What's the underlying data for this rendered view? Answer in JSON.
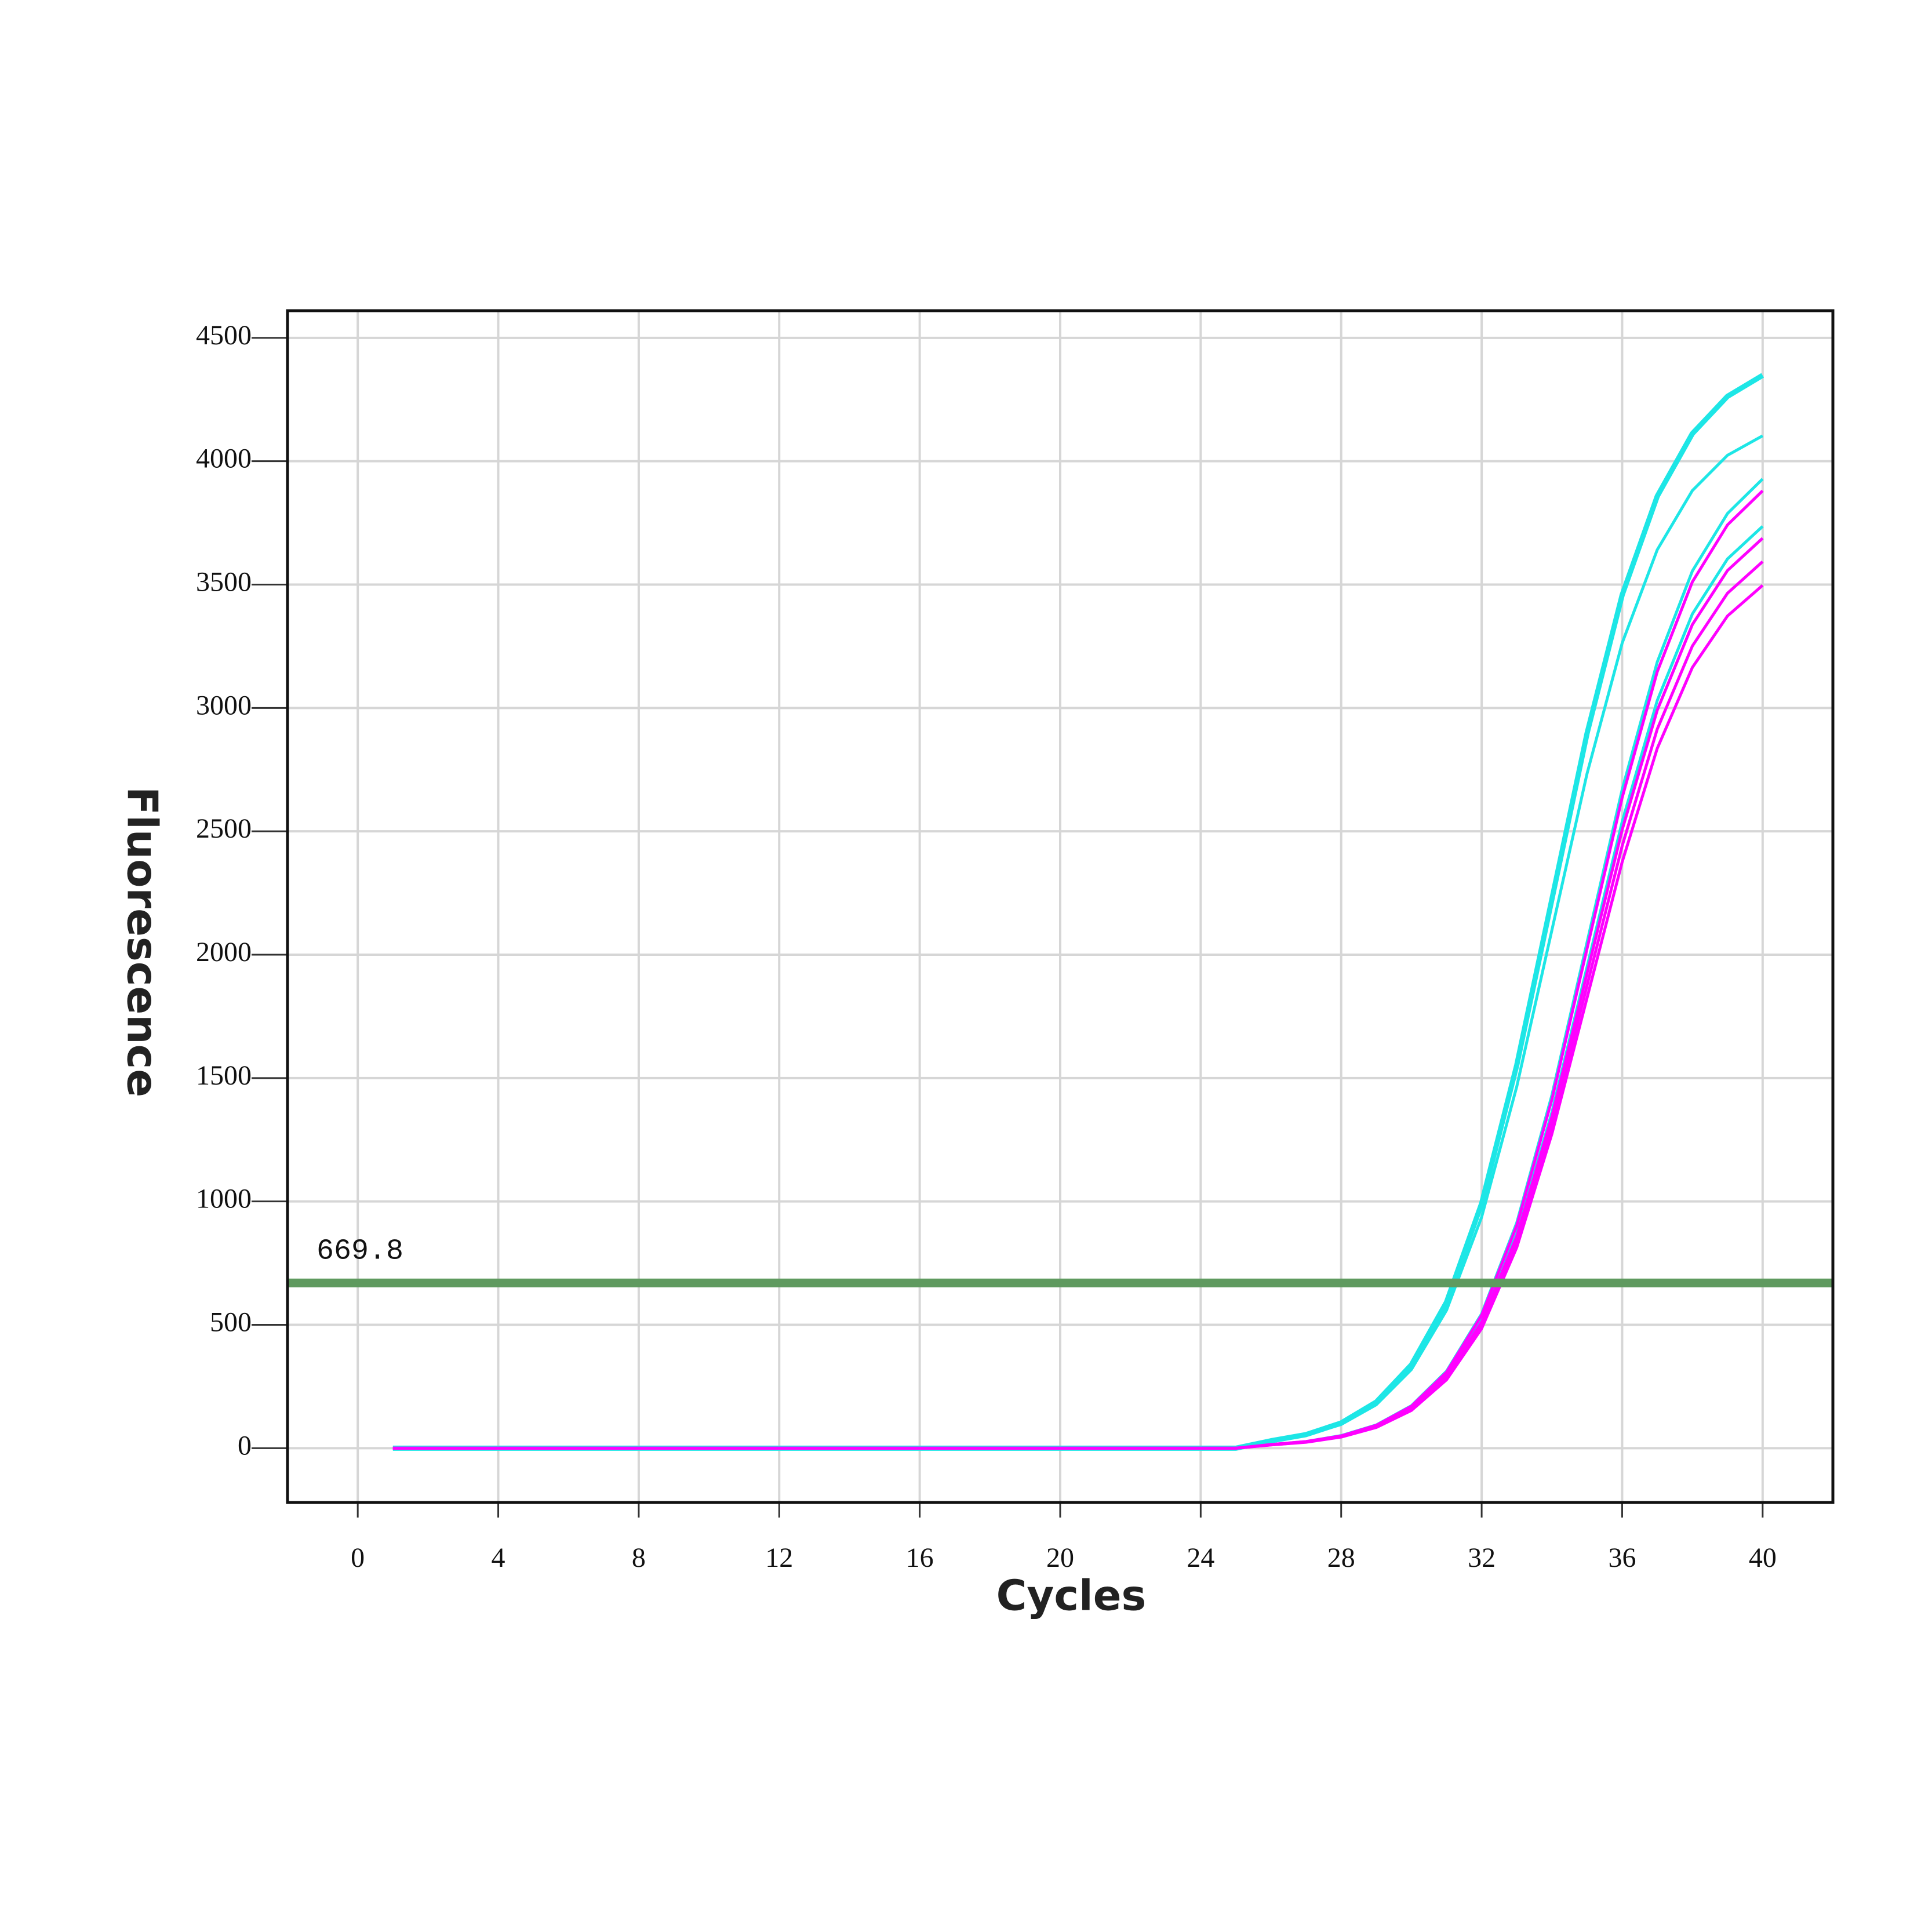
{
  "chart_data": {
    "type": "line",
    "xlabel": "Cycles",
    "ylabel": "Fluorescence",
    "x": [
      1,
      2,
      3,
      4,
      5,
      6,
      7,
      8,
      9,
      10,
      11,
      12,
      13,
      14,
      15,
      16,
      17,
      18,
      19,
      20,
      21,
      22,
      23,
      24,
      25,
      26,
      27,
      28,
      29,
      30,
      31,
      32,
      33,
      34,
      35,
      36,
      37,
      38,
      39,
      40
    ],
    "series": [
      {
        "color": "#1de6e6",
        "values": [
          0,
          0,
          0,
          0,
          0,
          0,
          0,
          0,
          0,
          0,
          0,
          0,
          0,
          0,
          0,
          0,
          0,
          0,
          0,
          0,
          0,
          0,
          0,
          0,
          0,
          30,
          55,
          102,
          187,
          338,
          592,
          992,
          1553,
          2225,
          2897,
          3458,
          3858,
          4112,
          4263,
          4348
        ]
      },
      {
        "color": "#1de6e6",
        "values": [
          0,
          0,
          0,
          0,
          0,
          0,
          0,
          0,
          0,
          0,
          0,
          0,
          0,
          0,
          0,
          0,
          0,
          0,
          0,
          0,
          0,
          0,
          0,
          0,
          0,
          28,
          52,
          96,
          176,
          319,
          559,
          937,
          1466,
          2100,
          2734,
          3263,
          3641,
          3881,
          4024,
          4103
        ]
      },
      {
        "color": "#1de6e6",
        "values": [
          0,
          0,
          0,
          0,
          0,
          0,
          0,
          0,
          0,
          0,
          0,
          0,
          0,
          0,
          0,
          0,
          0,
          0,
          0,
          0,
          0,
          0,
          0,
          0,
          0,
          15,
          27,
          51,
          94,
          172,
          312,
          545,
          914,
          1431,
          2050,
          2669,
          3186,
          3555,
          3788,
          3928
        ]
      },
      {
        "color": "#1de6e6",
        "values": [
          0,
          0,
          0,
          0,
          0,
          0,
          0,
          0,
          0,
          0,
          0,
          0,
          0,
          0,
          0,
          0,
          0,
          0,
          0,
          0,
          0,
          0,
          0,
          0,
          0,
          14,
          26,
          48,
          90,
          164,
          296,
          519,
          870,
          1361,
          1950,
          2539,
          3030,
          3381,
          3604,
          3736
        ]
      },
      {
        "color": "#ff00ff",
        "values": [
          0,
          0,
          0,
          0,
          0,
          0,
          0,
          0,
          0,
          0,
          0,
          0,
          0,
          0,
          0,
          0,
          0,
          0,
          0,
          0,
          0,
          0,
          0,
          0,
          0,
          15,
          27,
          50,
          93,
          170,
          308,
          539,
          903,
          1413,
          2025,
          2637,
          3147,
          3511,
          3742,
          3880
        ]
      },
      {
        "color": "#ff00ff",
        "values": [
          0,
          0,
          0,
          0,
          0,
          0,
          0,
          0,
          0,
          0,
          0,
          0,
          0,
          0,
          0,
          0,
          0,
          0,
          0,
          0,
          0,
          0,
          0,
          0,
          0,
          14,
          26,
          48,
          89,
          162,
          293,
          512,
          859,
          1344,
          1925,
          2506,
          2991,
          3338,
          3557,
          3688
        ]
      },
      {
        "color": "#ff00ff",
        "values": [
          0,
          0,
          0,
          0,
          0,
          0,
          0,
          0,
          0,
          0,
          0,
          0,
          0,
          0,
          0,
          0,
          0,
          0,
          0,
          0,
          0,
          0,
          0,
          0,
          0,
          13,
          25,
          47,
          86,
          158,
          285,
          499,
          836,
          1309,
          1875,
          2441,
          2914,
          3251,
          3465,
          3593
        ]
      },
      {
        "color": "#ff00ff",
        "values": [
          0,
          0,
          0,
          0,
          0,
          0,
          0,
          0,
          0,
          0,
          0,
          0,
          0,
          0,
          0,
          0,
          0,
          0,
          0,
          0,
          0,
          0,
          0,
          0,
          0,
          13,
          24,
          45,
          84,
          153,
          277,
          485,
          814,
          1274,
          1825,
          2376,
          2836,
          3164,
          3373,
          3497
        ]
      }
    ],
    "threshold": {
      "value": 669.8,
      "color": "#5f9a5f"
    },
    "xlim": [
      -2,
      42
    ],
    "xticks": [
      0,
      4,
      8,
      12,
      16,
      20,
      24,
      28,
      32,
      36,
      40
    ],
    "ylim": [
      -220,
      4610
    ],
    "yticks": [
      0,
      500,
      1000,
      1500,
      2000,
      2500,
      3000,
      3500,
      4000,
      4500
    ],
    "grid": true
  }
}
